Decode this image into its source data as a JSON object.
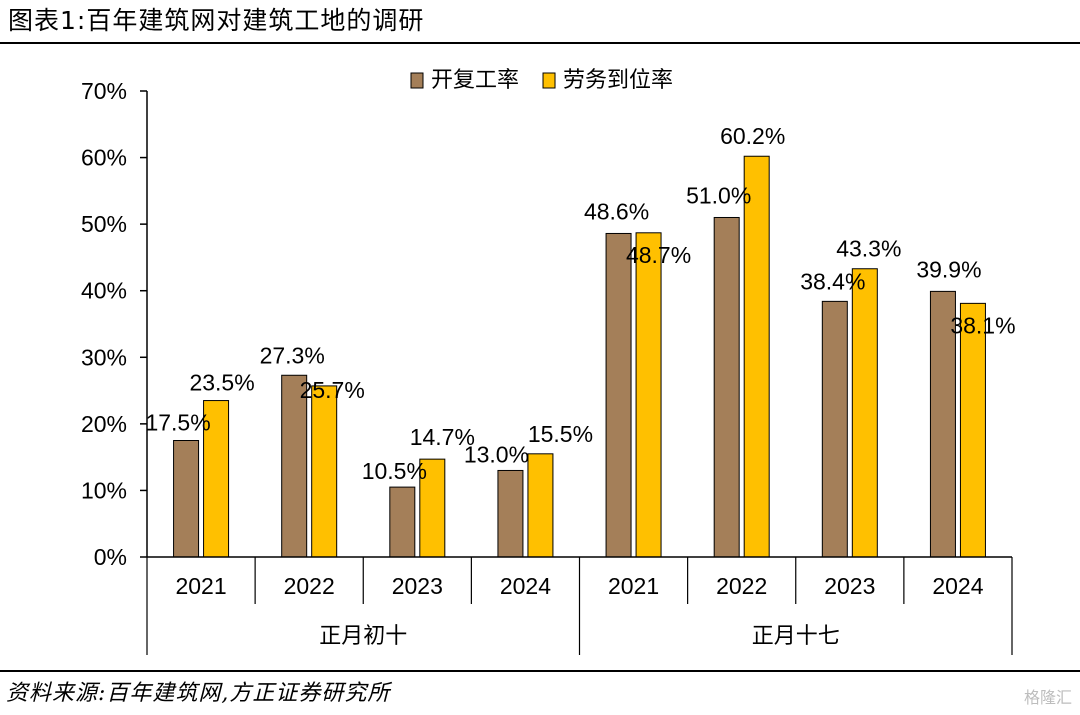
{
  "header": {
    "title": "图表1:百年建筑网对建筑工地的调研"
  },
  "footer": {
    "source": "资料来源:百年建筑网,方正证券研究所",
    "watermark": "格隆汇"
  },
  "chart_data": {
    "type": "bar",
    "title": "",
    "xlabel": "",
    "ylabel": "",
    "ylim": [
      0,
      70
    ],
    "yticks": [
      "0%",
      "10%",
      "20%",
      "30%",
      "40%",
      "50%",
      "60%",
      "70%"
    ],
    "legend_position": "top",
    "groups": [
      "正月初十",
      "正月十七"
    ],
    "categories": [
      "2021",
      "2022",
      "2023",
      "2024",
      "2021",
      "2022",
      "2023",
      "2024"
    ],
    "series": [
      {
        "name": "开复工率",
        "color": "#A47F59",
        "values": [
          17.5,
          27.3,
          10.5,
          13.0,
          48.6,
          51.0,
          38.4,
          39.9
        ],
        "labels": [
          "17.5%",
          "27.3%",
          "10.5%",
          "13.0%",
          "48.6%",
          "51.0%",
          "38.4%",
          "39.9%"
        ]
      },
      {
        "name": "劳务到位率",
        "color": "#FFC000",
        "values": [
          23.5,
          25.7,
          14.7,
          15.5,
          48.7,
          60.2,
          43.3,
          38.1
        ],
        "labels": [
          "23.5%",
          "25.7%",
          "14.7%",
          "15.5%",
          "48.7%",
          "60.2%",
          "43.3%",
          "38.1%"
        ]
      }
    ]
  }
}
